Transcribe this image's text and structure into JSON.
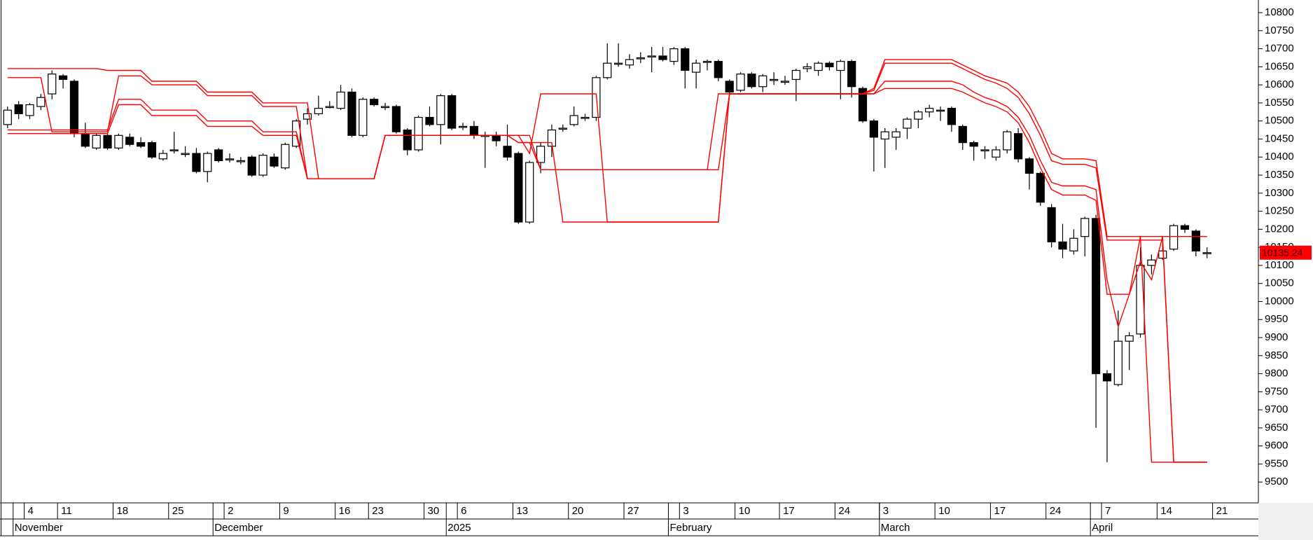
{
  "chart_data": {
    "type": "candlestick",
    "categories": [
      null,
      null,
      "4",
      null,
      null,
      "11",
      null,
      null,
      null,
      null,
      "18",
      null,
      null,
      null,
      null,
      "25",
      null,
      null,
      null,
      null,
      "2",
      null,
      null,
      null,
      null,
      "9",
      null,
      null,
      null,
      null,
      "16",
      null,
      null,
      "23",
      null,
      null,
      null,
      null,
      "30",
      null,
      null,
      "6",
      null,
      null,
      null,
      null,
      "13",
      null,
      null,
      null,
      null,
      "20",
      null,
      null,
      null,
      null,
      "27",
      null,
      null,
      null,
      null,
      "3",
      null,
      null,
      null,
      null,
      "10",
      null,
      null,
      null,
      "17",
      null,
      null,
      null,
      null,
      "24",
      null,
      null,
      null,
      "3",
      null,
      null,
      null,
      null,
      "10",
      null,
      null,
      null,
      null,
      "17",
      null,
      null,
      null,
      null,
      "24",
      null,
      null,
      null,
      null,
      "7",
      null,
      null,
      null,
      null,
      "14",
      null,
      null,
      null,
      null,
      "21"
    ],
    "months": [
      null,
      "November",
      null,
      null,
      null,
      null,
      null,
      null,
      null,
      null,
      null,
      null,
      null,
      null,
      null,
      null,
      null,
      null,
      null,
      "December",
      null,
      null,
      null,
      null,
      null,
      null,
      null,
      null,
      null,
      null,
      null,
      null,
      null,
      null,
      null,
      null,
      null,
      null,
      null,
      null,
      "2025",
      null,
      null,
      null,
      null,
      null,
      null,
      null,
      null,
      null,
      null,
      null,
      null,
      null,
      null,
      null,
      null,
      null,
      null,
      null,
      "February",
      null,
      null,
      null,
      null,
      null,
      null,
      null,
      null,
      null,
      null,
      null,
      null,
      null,
      null,
      null,
      null,
      null,
      null,
      "March",
      null,
      null,
      null,
      null,
      null,
      null,
      null,
      null,
      null,
      null,
      null,
      null,
      null,
      null,
      null,
      null,
      null,
      null,
      "April",
      null,
      null,
      null,
      null,
      null,
      null,
      null,
      null,
      null,
      null,
      null
    ],
    "open": [
      10490,
      10545,
      10515,
      10540,
      10575,
      10625,
      10610,
      10465,
      10425,
      10460,
      10425,
      10455,
      10440,
      10440,
      10395,
      10420,
      10410,
      10410,
      10360,
      10420,
      10395,
      10390,
      10400,
      10350,
      10400,
      10370,
      10430,
      10505,
      10520,
      10540,
      10535,
      10580,
      10460,
      10560,
      10540,
      10540,
      10475,
      10420,
      10510,
      10490,
      10570,
      10485,
      10485,
      10460,
      10460,
      10430,
      10410,
      10220,
      10385,
      10430,
      10480,
      10490,
      10510,
      10510,
      10620,
      10660,
      10655,
      10675,
      10680,
      10680,
      10665,
      10700,
      10635,
      10665,
      10665,
      10610,
      10585,
      10630,
      10595,
      10615,
      10610,
      10615,
      10645,
      10640,
      10660,
      10640,
      10665,
      10590,
      10500,
      10450,
      10455,
      10480,
      10505,
      10525,
      10530,
      10535,
      10485,
      10440,
      10420,
      10400,
      10420,
      10465,
      10395,
      10355,
      10260,
      10165,
      10140,
      10180,
      10230,
      9800,
      9770,
      9890,
      9910,
      10100,
      10120,
      10145,
      10210,
      10195,
      10135,
      null
    ],
    "high": [
      10540,
      10555,
      10550,
      10575,
      10640,
      10630,
      10615,
      10495,
      10465,
      10465,
      10465,
      10465,
      10455,
      10445,
      10420,
      10470,
      10430,
      10425,
      10415,
      10425,
      10410,
      10400,
      10405,
      10410,
      10410,
      10440,
      10505,
      10535,
      10570,
      10555,
      10600,
      10590,
      10565,
      10565,
      10550,
      10545,
      10480,
      10515,
      10540,
      10575,
      10575,
      10495,
      10500,
      10470,
      10470,
      10490,
      10415,
      10390,
      10440,
      10490,
      10490,
      10540,
      10520,
      10625,
      10715,
      10715,
      10685,
      10690,
      10705,
      10705,
      10705,
      10705,
      10670,
      10670,
      10670,
      10615,
      10635,
      10635,
      10630,
      10635,
      10625,
      10645,
      10660,
      10665,
      10665,
      10670,
      10670,
      10595,
      10505,
      10480,
      10480,
      10510,
      10530,
      10545,
      10540,
      10540,
      10490,
      10445,
      10430,
      10430,
      10475,
      10480,
      10400,
      10360,
      10270,
      10215,
      10200,
      10235,
      10240,
      9810,
      9975,
      9915,
      10150,
      10130,
      10175,
      10215,
      10215,
      10200,
      10150,
      null
    ],
    "low": [
      10480,
      10505,
      10505,
      10530,
      10560,
      10590,
      10455,
      10425,
      10420,
      10420,
      10420,
      10430,
      10425,
      10395,
      10390,
      10410,
      10400,
      10355,
      10330,
      10385,
      10385,
      10380,
      10345,
      10345,
      10370,
      10365,
      10425,
      10490,
      10515,
      10535,
      10530,
      10455,
      10455,
      10540,
      10530,
      10465,
      10405,
      10415,
      10485,
      10435,
      10475,
      10475,
      10450,
      10370,
      10430,
      10390,
      10215,
      10215,
      10355,
      10400,
      10470,
      10485,
      10500,
      10500,
      10615,
      10650,
      10645,
      10660,
      10635,
      10665,
      10655,
      10590,
      10590,
      10640,
      10610,
      10575,
      10580,
      10590,
      10580,
      10600,
      10600,
      10555,
      10635,
      10625,
      10640,
      10560,
      10565,
      10495,
      10360,
      10370,
      10420,
      10450,
      10480,
      10510,
      10500,
      10470,
      10420,
      10390,
      10395,
      10390,
      10410,
      10385,
      10310,
      10265,
      10150,
      10120,
      10130,
      10125,
      9650,
      9555,
      9765,
      9810,
      9900,
      10075,
      10115,
      10140,
      10190,
      10125,
      10120,
      null
    ],
    "close": [
      10530,
      10520,
      10545,
      10565,
      10630,
      10615,
      10465,
      10430,
      10460,
      10425,
      10460,
      10435,
      10430,
      10400,
      10410,
      10420,
      10410,
      10360,
      10410,
      10390,
      10395,
      10390,
      10350,
      10405,
      10375,
      10435,
      10500,
      10520,
      10535,
      10540,
      10580,
      10460,
      10560,
      10545,
      10540,
      10470,
      10420,
      10510,
      10490,
      10570,
      10480,
      10485,
      10460,
      10460,
      10445,
      10400,
      10220,
      10385,
      10430,
      10475,
      10480,
      10515,
      10510,
      10620,
      10660,
      10660,
      10670,
      10675,
      10680,
      10670,
      10700,
      10640,
      10660,
      10665,
      10620,
      10580,
      10630,
      10595,
      10625,
      10615,
      10610,
      10640,
      10650,
      10660,
      10650,
      10665,
      10595,
      10500,
      10455,
      10470,
      10470,
      10505,
      10525,
      10535,
      10530,
      10490,
      10440,
      10430,
      10420,
      10420,
      10470,
      10395,
      10355,
      10275,
      10165,
      10145,
      10175,
      10230,
      9800,
      9780,
      9890,
      9905,
      10100,
      10115,
      10140,
      10210,
      10200,
      10140,
      10135.24,
      null
    ],
    "up_color": "#ffffff",
    "down_color": "#000000",
    "lines": [
      {
        "color": "#ff0000",
        "values": [
          10645,
          10645,
          10645,
          10645,
          10645,
          10645,
          10645,
          10645,
          10645,
          10640,
          10640,
          10640,
          10640,
          10610,
          10610,
          10610,
          10610,
          10610,
          10580,
          10580,
          10580,
          10580,
          10580,
          10550,
          10550,
          10550,
          10550,
          10550,
          10340,
          10340,
          10340,
          10340,
          10340,
          10340,
          10460,
          10460,
          10460,
          10460,
          10460,
          10460,
          10460,
          10460,
          10460,
          10460,
          10460,
          10460,
          10460,
          10410,
          10575,
          10575,
          10575,
          10575,
          10575,
          10575,
          10220,
          10220,
          10220,
          10220,
          10220,
          10220,
          10220,
          10220,
          10220,
          10220,
          10220,
          10575,
          10575,
          10575,
          10575,
          10575,
          10575,
          10575,
          10575,
          10575,
          10575,
          10575,
          10575,
          10575,
          10590,
          10670,
          10670,
          10670,
          10670,
          10670,
          10670,
          10670,
          10655,
          10640,
          10625,
          10615,
          10605,
          10580,
          10540,
          10480,
          10410,
          10395,
          10395,
          10395,
          10390,
          10180,
          10180,
          10180,
          10180,
          9555,
          9555,
          9555,
          9555,
          9555,
          9555,
          null
        ]
      },
      {
        "color": "#ff0000",
        "values": [
          10620,
          10620,
          10620,
          10620,
          10470,
          10470,
          10470,
          10470,
          10470,
          10470,
          10625,
          10625,
          10625,
          10600,
          10600,
          10600,
          10600,
          10600,
          10570,
          10570,
          10570,
          10570,
          10570,
          10540,
          10540,
          10540,
          10540,
          10340,
          10340,
          10340,
          10340,
          10340,
          10340,
          10340,
          10460,
          10460,
          10460,
          10460,
          10460,
          10460,
          10460,
          10460,
          10460,
          10460,
          10460,
          10460,
          10440,
          10440,
          10365,
          10365,
          10365,
          10365,
          10365,
          10365,
          10365,
          10365,
          10365,
          10365,
          10365,
          10365,
          10365,
          10365,
          10365,
          10365,
          10365,
          10575,
          10575,
          10575,
          10575,
          10575,
          10575,
          10575,
          10575,
          10575,
          10575,
          10575,
          10575,
          10575,
          10585,
          10660,
          10660,
          10660,
          10660,
          10660,
          10660,
          10660,
          10645,
          10630,
          10615,
          10605,
          10590,
          10565,
          10520,
          10460,
          10390,
          10380,
          10380,
          10380,
          10370,
          10170,
          10170,
          10170,
          10170,
          10170,
          10170,
          9555,
          9555,
          9555,
          9555,
          null
        ]
      },
      {
        "color": "#ff0000",
        "values": [
          10475,
          10475,
          10475,
          10475,
          10475,
          10475,
          10475,
          10475,
          10475,
          10475,
          10560,
          10560,
          10560,
          10530,
          10530,
          10530,
          10530,
          10530,
          10500,
          10500,
          10500,
          10500,
          10500,
          10470,
          10470,
          10470,
          10470,
          10340,
          10340,
          10340,
          10340,
          10340,
          10340,
          10340,
          10460,
          10460,
          10460,
          10460,
          10460,
          10460,
          10460,
          10460,
          10460,
          10460,
          10460,
          10460,
          10440,
          10440,
          10440,
          10440,
          10220,
          10220,
          10220,
          10220,
          10220,
          10220,
          10220,
          10220,
          10220,
          10220,
          10220,
          10220,
          10220,
          10220,
          10220,
          10575,
          10575,
          10575,
          10575,
          10575,
          10575,
          10575,
          10575,
          10575,
          10575,
          10575,
          10575,
          10575,
          10575,
          10610,
          10610,
          10610,
          10610,
          10610,
          10610,
          10610,
          10600,
          10580,
          10565,
          10555,
          10540,
          10510,
          10460,
          10390,
          10330,
          10320,
          10320,
          10320,
          10310,
          10060,
          9930,
          10020,
          10110,
          10060,
          10180,
          10180,
          10180,
          10180,
          10180,
          null
        ]
      },
      {
        "color": "#ff0000",
        "values": [
          10465,
          10465,
          10465,
          10465,
          10465,
          10465,
          10465,
          10465,
          10465,
          10465,
          10545,
          10545,
          10545,
          10515,
          10515,
          10515,
          10515,
          10515,
          10485,
          10485,
          10485,
          10485,
          10485,
          10460,
          10460,
          10460,
          10460,
          10340,
          10340,
          10340,
          10340,
          10340,
          10340,
          10340,
          10460,
          10460,
          10460,
          10460,
          10460,
          10460,
          10460,
          10460,
          10460,
          10460,
          10460,
          10460,
          10460,
          10460,
          10365,
          10365,
          10365,
          10365,
          10365,
          10365,
          10365,
          10365,
          10365,
          10365,
          10365,
          10365,
          10365,
          10365,
          10365,
          10365,
          10575,
          10575,
          10575,
          10575,
          10575,
          10575,
          10575,
          10575,
          10575,
          10575,
          10575,
          10575,
          10575,
          10575,
          10575,
          10590,
          10590,
          10590,
          10590,
          10590,
          10590,
          10590,
          10580,
          10565,
          10550,
          10540,
          10525,
          10495,
          10440,
          10370,
          10310,
          10295,
          10295,
          10295,
          10280,
          10020,
          10020,
          10020,
          10180,
          10180,
          10180,
          9555,
          9555,
          9555,
          9555,
          null
        ]
      }
    ],
    "ylim": [
      9450,
      10835
    ],
    "yticks": [
      9500,
      9550,
      9600,
      9650,
      9700,
      9750,
      9800,
      9850,
      9900,
      9950,
      10000,
      10050,
      10100,
      10150,
      10200,
      10250,
      10300,
      10350,
      10400,
      10450,
      10500,
      10550,
      10600,
      10650,
      10700,
      10750,
      10800
    ],
    "last_price": 10135.24,
    "last_price_color": "#ff0000"
  }
}
